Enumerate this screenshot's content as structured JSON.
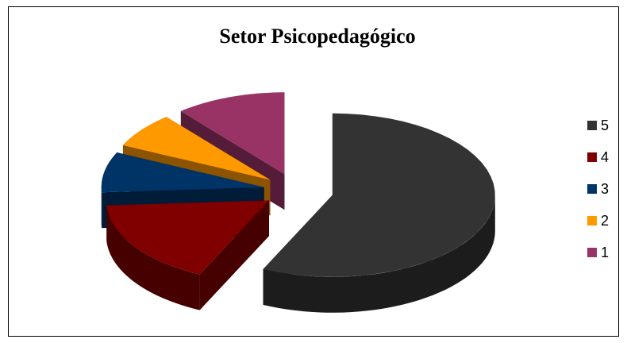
{
  "chart_data": {
    "type": "pie",
    "title": "Setor Psicopedagógico",
    "categories": [
      "5",
      "4",
      "3",
      "2",
      "1"
    ],
    "values": [
      57,
      17,
      8,
      7,
      11
    ],
    "colors": [
      "#333333",
      "#800000",
      "#003366",
      "#ff9900",
      "#993366"
    ],
    "legend": "right"
  }
}
